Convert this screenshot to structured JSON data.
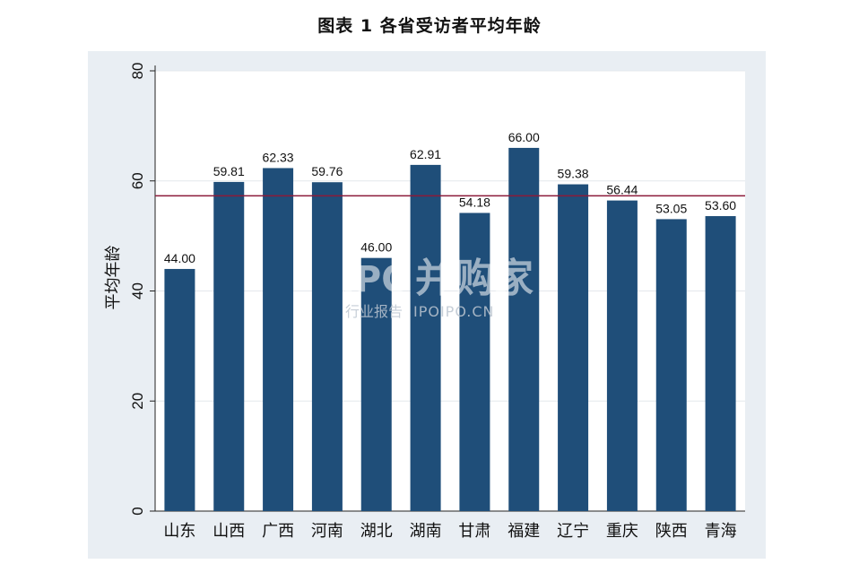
{
  "figure": {
    "title": "图表 1 各省受访者平均年龄",
    "watermark": {
      "brand": "IPO",
      "brand_cn": "并购家",
      "line2_cn": "行业报告",
      "line2_en": "IPOIPO.CN"
    }
  },
  "chart_data": {
    "type": "bar",
    "title": "图表 1 各省受访者平均年龄",
    "xlabel": "",
    "ylabel": "平均年龄",
    "ylim": [
      0,
      80
    ],
    "yticks": [
      0,
      20,
      40,
      60,
      80
    ],
    "categories": [
      "山东",
      "山西",
      "广西",
      "河南",
      "湖北",
      "湖南",
      "甘肃",
      "福建",
      "辽宁",
      "重庆",
      "陕西",
      "青海"
    ],
    "values": [
      44.0,
      59.81,
      62.33,
      59.76,
      46.0,
      62.91,
      54.18,
      66.0,
      59.38,
      56.44,
      53.05,
      53.6
    ],
    "value_labels": [
      "44.00",
      "59.81",
      "62.33",
      "59.76",
      "46.00",
      "62.91",
      "54.18",
      "66.00",
      "59.38",
      "56.44",
      "53.05",
      "53.60"
    ],
    "reference_line": 57.3,
    "grid": true,
    "legend": "none",
    "colors": {
      "bar": "#1f4e79",
      "reference_line": "#8b1a3a",
      "outer_background": "#e9eef3",
      "plot_background": "#ffffff",
      "grid": "#e4e8ec"
    }
  }
}
